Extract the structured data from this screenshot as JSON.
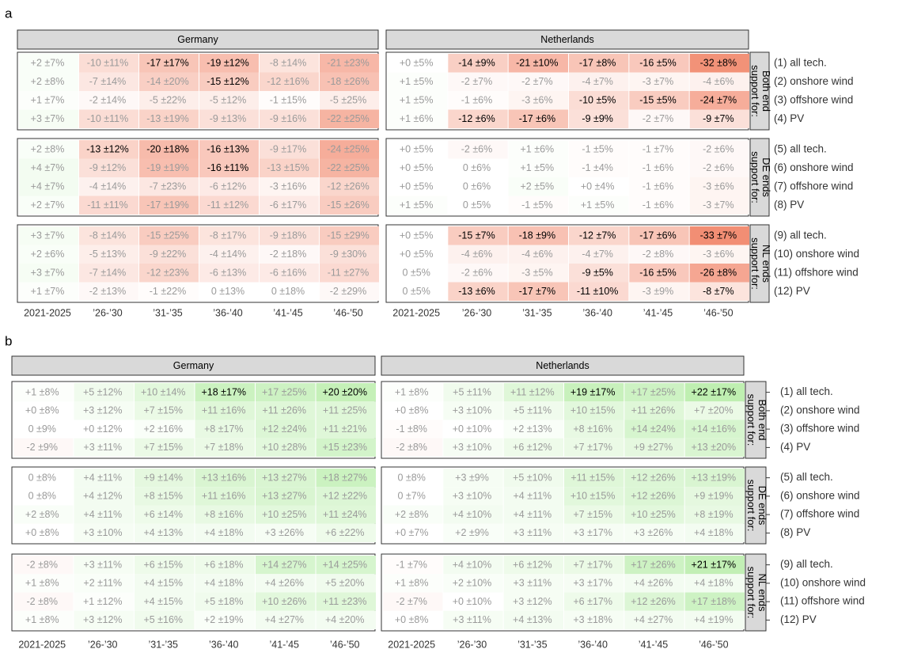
{
  "panels": [
    {
      "label": "a",
      "columns": [
        "2021-2025",
        "’26-’30",
        "’31-’35",
        "’36-’40",
        "’41-’45",
        "’46-’50"
      ],
      "group_labels": [
        "Both end support for:",
        "DE ends support for:",
        "NL ends support for:"
      ],
      "row_labels": [
        "(1) all tech.",
        "(2) onshore wind",
        "(3) offshore wind",
        "(4) PV",
        "(5) all tech.",
        "(6) onshore wind",
        "(7) offshore wind",
        "(8) PV",
        "(9) all tech.",
        "(10) onshore wind",
        "(11) offshore wind",
        "(12) PV"
      ],
      "countries": [
        {
          "name": "Germany",
          "cells": [
            [
              "+2 ±7%",
              "-10 ±11%",
              "-17 ±17%",
              "-19 ±12%",
              "-8 ±14%",
              "-21 ±23%"
            ],
            [
              "+2 ±8%",
              "-7 ±14%",
              "-14 ±20%",
              "-15 ±12%",
              "-12 ±16%",
              "-18 ±26%"
            ],
            [
              "+1 ±7%",
              "-2 ±14%",
              "-5 ±22%",
              "-5 ±12%",
              "-1 ±15%",
              "-5 ±25%"
            ],
            [
              "+3 ±7%",
              "-10 ±11%",
              "-13 ±19%",
              "-9 ±13%",
              "-9 ±16%",
              "-22 ±25%"
            ],
            [
              "+2 ±8%",
              "-13 ±12%",
              "-20 ±18%",
              "-16 ±13%",
              "-9 ±17%",
              "-24 ±25%"
            ],
            [
              "+4 ±7%",
              "-9 ±12%",
              "-19 ±19%",
              "-16 ±11%",
              "-13 ±15%",
              "-22 ±25%"
            ],
            [
              "+4 ±7%",
              "-4 ±14%",
              "-7 ±23%",
              "-6 ±12%",
              "-3 ±16%",
              "-12 ±26%"
            ],
            [
              "+2 ±7%",
              "-11 ±11%",
              "-17 ±19%",
              "-11 ±12%",
              "-6 ±17%",
              "-15 ±26%"
            ],
            [
              "+3 ±7%",
              "-8 ±14%",
              "-15 ±25%",
              "-8 ±17%",
              "-9 ±18%",
              "-15 ±29%"
            ],
            [
              "+2 ±6%",
              "-5 ±13%",
              "-9 ±22%",
              "-4 ±14%",
              "-2 ±18%",
              "-9 ±30%"
            ],
            [
              "+3 ±7%",
              "-7 ±14%",
              "-12 ±23%",
              "-6 ±13%",
              "-6 ±16%",
              "-11 ±27%"
            ],
            [
              "+1 ±7%",
              "-2 ±13%",
              "-1 ±22%",
              "0 ±13%",
              "0 ±18%",
              "-2 ±29%"
            ]
          ],
          "emphasized": [
            [
              false,
              false,
              true,
              true,
              false,
              false
            ],
            [
              false,
              false,
              false,
              true,
              false,
              false
            ],
            [
              false,
              false,
              false,
              false,
              false,
              false
            ],
            [
              false,
              false,
              false,
              false,
              false,
              false
            ],
            [
              false,
              true,
              true,
              true,
              false,
              false
            ],
            [
              false,
              false,
              false,
              true,
              false,
              false
            ],
            [
              false,
              false,
              false,
              false,
              false,
              false
            ],
            [
              false,
              false,
              false,
              false,
              false,
              false
            ],
            [
              false,
              false,
              false,
              false,
              false,
              false
            ],
            [
              false,
              false,
              false,
              false,
              false,
              false
            ],
            [
              false,
              false,
              false,
              false,
              false,
              false
            ],
            [
              false,
              false,
              false,
              false,
              false,
              false
            ]
          ]
        },
        {
          "name": "Netherlands",
          "cells": [
            [
              "+0 ±5%",
              "-14 ±9%",
              "-21 ±10%",
              "-17 ±8%",
              "-16 ±5%",
              "-32 ±8%"
            ],
            [
              "+1 ±5%",
              "-2 ±7%",
              "-2 ±7%",
              "-4 ±7%",
              "-3 ±7%",
              "-4 ±6%"
            ],
            [
              "+1 ±5%",
              "-1 ±6%",
              "-3 ±6%",
              "-10 ±5%",
              "-15 ±5%",
              "-24 ±7%"
            ],
            [
              "+1 ±6%",
              "-12 ±6%",
              "-17 ±6%",
              "-9 ±9%",
              "-2 ±7%",
              "-9 ±7%"
            ],
            [
              "+0 ±5%",
              "-2 ±6%",
              "+1 ±6%",
              "-1 ±5%",
              "-1 ±7%",
              "-2 ±6%"
            ],
            [
              "+0 ±5%",
              "0 ±6%",
              "+1 ±5%",
              "-1 ±4%",
              "-1 ±6%",
              "-2 ±6%"
            ],
            [
              "+0 ±5%",
              "0 ±6%",
              "+2 ±5%",
              "+0 ±4%",
              "-1 ±6%",
              "-3 ±6%"
            ],
            [
              "+1 ±5%",
              "0 ±5%",
              "-1 ±5%",
              "+1 ±5%",
              "-1 ±6%",
              "-3 ±7%"
            ],
            [
              "+0 ±5%",
              "-15 ±7%",
              "-18 ±9%",
              "-12 ±7%",
              "-17 ±6%",
              "-33 ±7%"
            ],
            [
              "+0 ±5%",
              "-4 ±6%",
              "-4 ±6%",
              "-4 ±7%",
              "-2 ±8%",
              "-3 ±6%"
            ],
            [
              "0 ±5%",
              "-2 ±6%",
              "-3 ±5%",
              "-9 ±5%",
              "-16 ±5%",
              "-26 ±8%"
            ],
            [
              "0 ±5%",
              "-13 ±6%",
              "-17 ±7%",
              "-11 ±10%",
              "-3 ±9%",
              "-8 ±7%"
            ]
          ],
          "emphasized": [
            [
              false,
              true,
              true,
              true,
              true,
              true
            ],
            [
              false,
              false,
              false,
              false,
              false,
              false
            ],
            [
              false,
              false,
              false,
              true,
              true,
              true
            ],
            [
              false,
              true,
              true,
              true,
              false,
              true
            ],
            [
              false,
              false,
              false,
              false,
              false,
              false
            ],
            [
              false,
              false,
              false,
              false,
              false,
              false
            ],
            [
              false,
              false,
              false,
              false,
              false,
              false
            ],
            [
              false,
              false,
              false,
              false,
              false,
              false
            ],
            [
              false,
              true,
              true,
              true,
              true,
              true
            ],
            [
              false,
              false,
              false,
              false,
              false,
              false
            ],
            [
              false,
              false,
              false,
              true,
              true,
              true
            ],
            [
              false,
              true,
              true,
              true,
              false,
              true
            ]
          ]
        }
      ]
    },
    {
      "label": "b",
      "columns": [
        "2021-2025",
        "’26-’30",
        "’31-’35",
        "’36-’40",
        "’41-’45",
        "’46-’50"
      ],
      "group_labels": [
        "Both end support for:",
        "DE ends support for:",
        "NL ends support for:"
      ],
      "row_labels": [
        "(1) all tech.",
        "(2) onshore wind",
        "(3) offshore wind",
        "(4) PV",
        "(5) all tech.",
        "(6) onshore wind",
        "(7) offshore wind",
        "(8) PV",
        "(9) all tech.",
        "(10) onshore wind",
        "(11) offshore wind",
        "(12) PV"
      ],
      "countries": [
        {
          "name": "Germany",
          "cells": [
            [
              "+1 ±8%",
              "+5 ±12%",
              "+10 ±14%",
              "+18 ±17%",
              "+17 ±25%",
              "+20 ±20%"
            ],
            [
              "+0 ±8%",
              "+3 ±12%",
              "+7 ±15%",
              "+11 ±16%",
              "+11 ±26%",
              "+11 ±25%"
            ],
            [
              "0 ±9%",
              "+0 ±12%",
              "+2 ±16%",
              "+8 ±17%",
              "+12 ±24%",
              "+11 ±21%"
            ],
            [
              "-2 ±9%",
              "+3 ±11%",
              "+7 ±15%",
              "+7 ±18%",
              "+10 ±28%",
              "+15 ±23%"
            ],
            [
              "0 ±8%",
              "+4 ±11%",
              "+9 ±14%",
              "+13 ±16%",
              "+13 ±27%",
              "+18 ±27%"
            ],
            [
              "0 ±8%",
              "+4 ±12%",
              "+8 ±15%",
              "+11 ±16%",
              "+13 ±27%",
              "+12 ±22%"
            ],
            [
              "+2 ±8%",
              "+4 ±11%",
              "+6 ±14%",
              "+8 ±16%",
              "+10 ±25%",
              "+11 ±24%"
            ],
            [
              "+0 ±8%",
              "+3 ±10%",
              "+4 ±13%",
              "+4 ±18%",
              "+3 ±26%",
              "+6 ±22%"
            ],
            [
              "-2 ±8%",
              "+3 ±11%",
              "+6 ±15%",
              "+6 ±18%",
              "+14 ±27%",
              "+14 ±25%"
            ],
            [
              "+1 ±8%",
              "+2 ±11%",
              "+4 ±15%",
              "+4 ±18%",
              "+4 ±26%",
              "+5 ±20%"
            ],
            [
              "-2 ±8%",
              "+1 ±12%",
              "+4 ±15%",
              "+5 ±18%",
              "+10 ±26%",
              "+11 ±23%"
            ],
            [
              "+1 ±8%",
              "+3 ±12%",
              "+5 ±16%",
              "+2 ±19%",
              "+4 ±27%",
              "+4 ±20%"
            ]
          ],
          "emphasized": [
            [
              false,
              false,
              false,
              true,
              false,
              true
            ],
            [
              false,
              false,
              false,
              false,
              false,
              false
            ],
            [
              false,
              false,
              false,
              false,
              false,
              false
            ],
            [
              false,
              false,
              false,
              false,
              false,
              false
            ],
            [
              false,
              false,
              false,
              false,
              false,
              false
            ],
            [
              false,
              false,
              false,
              false,
              false,
              false
            ],
            [
              false,
              false,
              false,
              false,
              false,
              false
            ],
            [
              false,
              false,
              false,
              false,
              false,
              false
            ],
            [
              false,
              false,
              false,
              false,
              false,
              false
            ],
            [
              false,
              false,
              false,
              false,
              false,
              false
            ],
            [
              false,
              false,
              false,
              false,
              false,
              false
            ],
            [
              false,
              false,
              false,
              false,
              false,
              false
            ]
          ]
        },
        {
          "name": "Netherlands",
          "cells": [
            [
              "+1 ±8%",
              "+5 ±11%",
              "+11 ±12%",
              "+19 ±17%",
              "+17 ±25%",
              "+22 ±17%"
            ],
            [
              "+0 ±8%",
              "+3 ±10%",
              "+5 ±11%",
              "+10 ±15%",
              "+11 ±26%",
              "+7 ±20%"
            ],
            [
              "-1 ±8%",
              "+0 ±10%",
              "+2 ±13%",
              "+8 ±16%",
              "+14 ±24%",
              "+14 ±16%"
            ],
            [
              "-2 ±8%",
              "+3 ±10%",
              "+6 ±12%",
              "+7 ±17%",
              "+9 ±27%",
              "+13 ±20%"
            ],
            [
              "0 ±8%",
              "+3 ±9%",
              "+5 ±10%",
              "+11 ±15%",
              "+12 ±26%",
              "+13 ±19%"
            ],
            [
              "0 ±7%",
              "+3 ±10%",
              "+4 ±11%",
              "+10 ±15%",
              "+12 ±26%",
              "+9 ±19%"
            ],
            [
              "+2 ±8%",
              "+4 ±10%",
              "+4 ±11%",
              "+7 ±15%",
              "+10 ±25%",
              "+8 ±19%"
            ],
            [
              "+0 ±7%",
              "+2 ±9%",
              "+3 ±11%",
              "+3 ±17%",
              "+3 ±26%",
              "+4 ±18%"
            ],
            [
              "-1 ±7%",
              "+4 ±10%",
              "+6 ±12%",
              "+7 ±17%",
              "+17 ±26%",
              "+21 ±17%"
            ],
            [
              "+1 ±8%",
              "+2 ±10%",
              "+3 ±11%",
              "+3 ±17%",
              "+4 ±26%",
              "+4 ±18%"
            ],
            [
              "-2 ±7%",
              "+0 ±10%",
              "+3 ±12%",
              "+6 ±17%",
              "+12 ±26%",
              "+17 ±18%"
            ],
            [
              "+0 ±8%",
              "+3 ±11%",
              "+4 ±13%",
              "+3 ±18%",
              "+4 ±27%",
              "+4 ±19%"
            ]
          ],
          "emphasized": [
            [
              false,
              false,
              false,
              true,
              false,
              true
            ],
            [
              false,
              false,
              false,
              false,
              false,
              false
            ],
            [
              false,
              false,
              false,
              false,
              false,
              false
            ],
            [
              false,
              false,
              false,
              false,
              false,
              false
            ],
            [
              false,
              false,
              false,
              false,
              false,
              false
            ],
            [
              false,
              false,
              false,
              false,
              false,
              false
            ],
            [
              false,
              false,
              false,
              false,
              false,
              false
            ],
            [
              false,
              false,
              false,
              false,
              false,
              false
            ],
            [
              false,
              false,
              false,
              false,
              false,
              true
            ],
            [
              false,
              false,
              false,
              false,
              false,
              false
            ],
            [
              false,
              false,
              false,
              false,
              false,
              false
            ],
            [
              false,
              false,
              false,
              false,
              false,
              false
            ]
          ]
        }
      ]
    }
  ]
}
